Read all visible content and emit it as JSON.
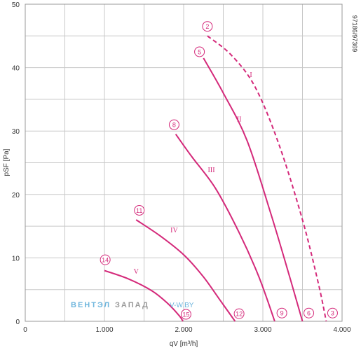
{
  "chart_data": {
    "type": "line",
    "xlabel": "qV [m³/h]",
    "ylabel": "pSF [Pa]",
    "xlim": [
      0,
      4000
    ],
    "ylim": [
      0,
      50
    ],
    "x_ticks": [
      "0",
      "1.000",
      "2.000",
      "3.000",
      "4.000"
    ],
    "y_ticks": [
      "0",
      "10",
      "20",
      "30",
      "40",
      "50"
    ],
    "grid": true,
    "side_code": "97186/97369",
    "series": [
      {
        "name": "I",
        "dashed": true,
        "points": [
          [
            2300,
            45
          ],
          [
            2600,
            42
          ],
          [
            2900,
            37
          ],
          [
            3200,
            28
          ],
          [
            3500,
            16
          ],
          [
            3700,
            6
          ],
          [
            3800,
            0
          ]
        ]
      },
      {
        "name": "II",
        "dashed": false,
        "points": [
          [
            2250,
            41.5
          ],
          [
            2500,
            36
          ],
          [
            2800,
            28.5
          ],
          [
            3100,
            17
          ],
          [
            3350,
            6.5
          ],
          [
            3500,
            0
          ]
        ]
      },
      {
        "name": "III",
        "dashed": false,
        "points": [
          [
            1900,
            29.5
          ],
          [
            2100,
            26
          ],
          [
            2400,
            21
          ],
          [
            2700,
            14
          ],
          [
            2950,
            7
          ],
          [
            3150,
            0
          ]
        ]
      },
      {
        "name": "IV",
        "dashed": false,
        "points": [
          [
            1400,
            16
          ],
          [
            1700,
            13.5
          ],
          [
            2000,
            10.5
          ],
          [
            2250,
            7
          ],
          [
            2450,
            3.5
          ],
          [
            2650,
            0
          ]
        ]
      },
      {
        "name": "V",
        "dashed": false,
        "points": [
          [
            1000,
            8
          ],
          [
            1300,
            6.7
          ],
          [
            1600,
            4.8
          ],
          [
            1800,
            2.8
          ],
          [
            1950,
            0.8
          ],
          [
            1990,
            0
          ]
        ]
      }
    ],
    "series_labels": [
      {
        "text": "I",
        "x": 2850,
        "y": 38.5
      },
      {
        "text": "II",
        "x": 2700,
        "y": 31.5
      },
      {
        "text": "III",
        "x": 2350,
        "y": 23.5
      },
      {
        "text": "IV",
        "x": 1880,
        "y": 14
      },
      {
        "text": "V",
        "x": 1400,
        "y": 7.5
      }
    ],
    "markers": [
      {
        "label": "2",
        "x": 2300,
        "y": 46.5
      },
      {
        "label": "5",
        "x": 2200,
        "y": 42.5
      },
      {
        "label": "8",
        "x": 1880,
        "y": 31
      },
      {
        "label": "11",
        "x": 1440,
        "y": 17.5
      },
      {
        "label": "14",
        "x": 1010,
        "y": 9.7
      },
      {
        "label": "3",
        "x": 3880,
        "y": 1.3
      },
      {
        "label": "6",
        "x": 3580,
        "y": 1.3
      },
      {
        "label": "9",
        "x": 3240,
        "y": 1.3
      },
      {
        "label": "12",
        "x": 2700,
        "y": 1.2
      },
      {
        "label": "15",
        "x": 2030,
        "y": 1.1
      }
    ]
  },
  "watermark": {
    "part1": "ВЕНТЭЛ",
    "part2": "ЗАПАД",
    "part3": "V-W.BY"
  }
}
